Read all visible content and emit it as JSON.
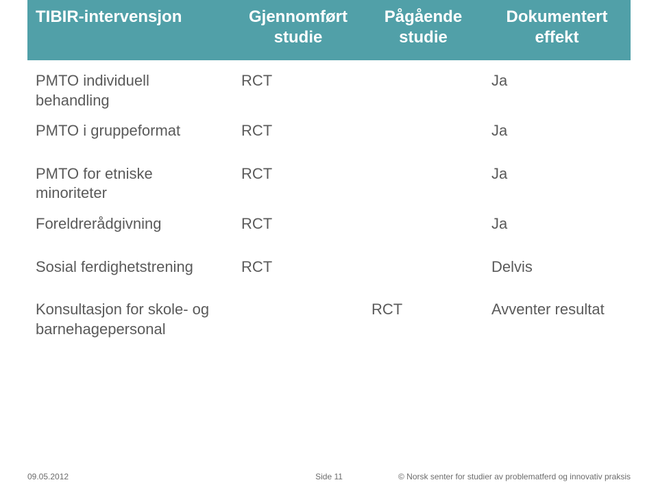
{
  "header": {
    "col1": "TIBIR-intervensjon",
    "col2": "Gjennomført studie",
    "col3": "Pågående studie",
    "col4": "Dokumentert effekt"
  },
  "rows": [
    {
      "c1": "PMTO individuell behandling",
      "c2": "RCT",
      "c3": "",
      "c4": "Ja"
    },
    {
      "c1": "PMTO i gruppeformat",
      "c2": "RCT",
      "c3": "",
      "c4": "Ja"
    },
    {
      "spacer": true
    },
    {
      "c1": "PMTO for etniske minoriteter",
      "c2": "RCT",
      "c3": "",
      "c4": "Ja"
    },
    {
      "c1": "Foreldrerådgivning",
      "c2": "RCT",
      "c3": "",
      "c4": "Ja"
    },
    {
      "spacer": true
    },
    {
      "c1": "Sosial ferdighetstrening",
      "c2": "RCT",
      "c3": "",
      "c4": "Delvis"
    },
    {
      "spacer": true
    },
    {
      "c1": "Konsultasjon for skole- og barnehagepersonal",
      "c2": "",
      "c3": "RCT",
      "c4": "Avventer resultat"
    }
  ],
  "footer": {
    "left": "09.05.2012",
    "center": "Side 11",
    "right": "© Norsk senter for studier av problematferd og innovativ praksis"
  },
  "colors": {
    "header_bg": "#51a0a8",
    "header_fg": "#ffffff",
    "body_fg": "#5a5a5a",
    "background": "#ffffff"
  }
}
